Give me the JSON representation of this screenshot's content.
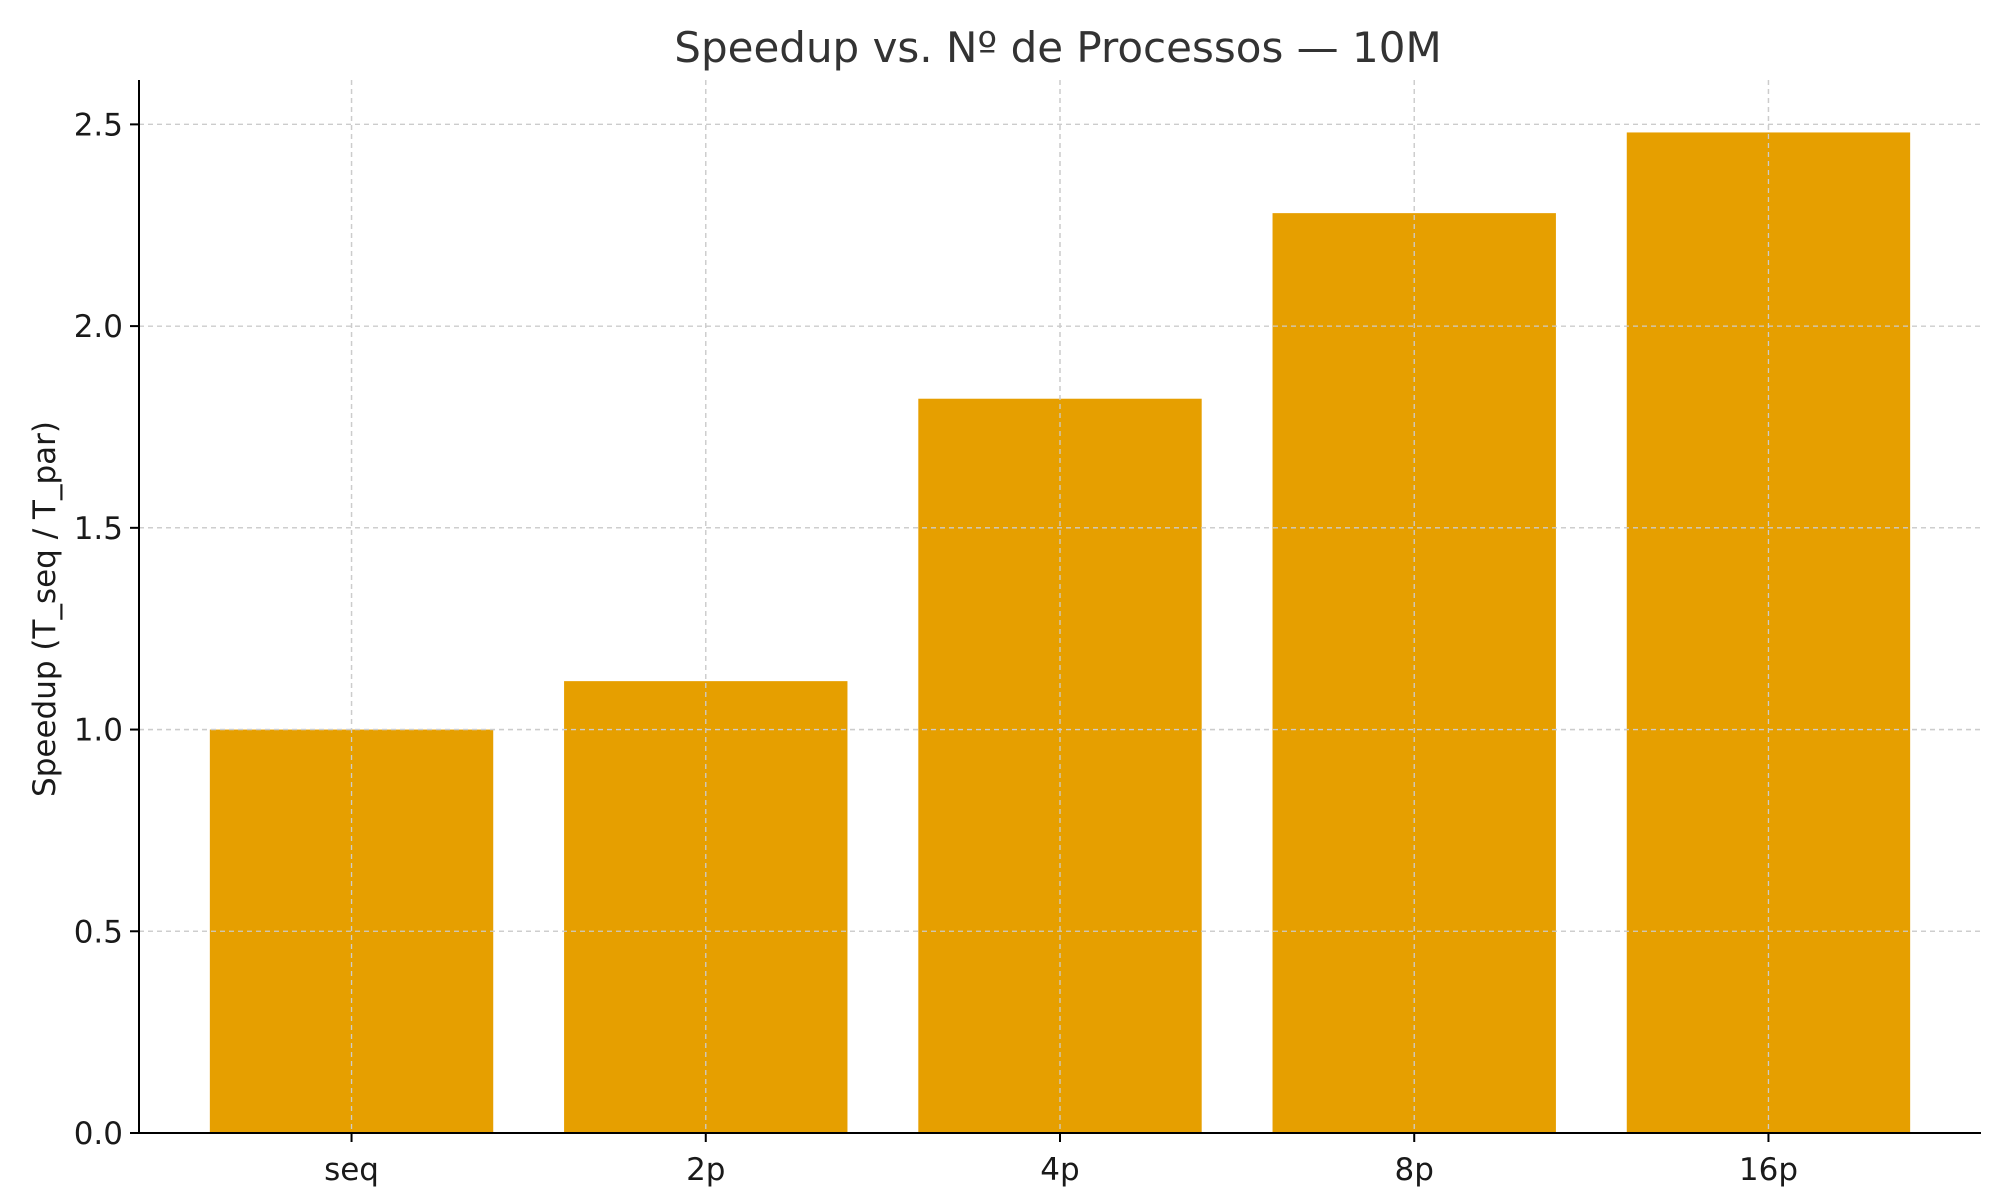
{
  "chart_data": {
    "type": "bar",
    "title": "Speedup vs. Nº de Processos — 10M",
    "xlabel": "",
    "ylabel": "Speedup (T_seq / T_par)",
    "categories": [
      "seq",
      "2p",
      "4p",
      "8p",
      "16p"
    ],
    "values": [
      1.0,
      1.12,
      1.82,
      2.28,
      2.48
    ],
    "ylim": [
      0,
      2.61
    ],
    "yticks": [
      "0.0",
      "0.5",
      "1.0",
      "1.5",
      "2.0",
      "2.5"
    ],
    "grid": true,
    "legend": "none",
    "bar_color": "#E69F00",
    "grid_color": "#cccccc",
    "axis_color": "#000000",
    "title_color": "#333333"
  }
}
